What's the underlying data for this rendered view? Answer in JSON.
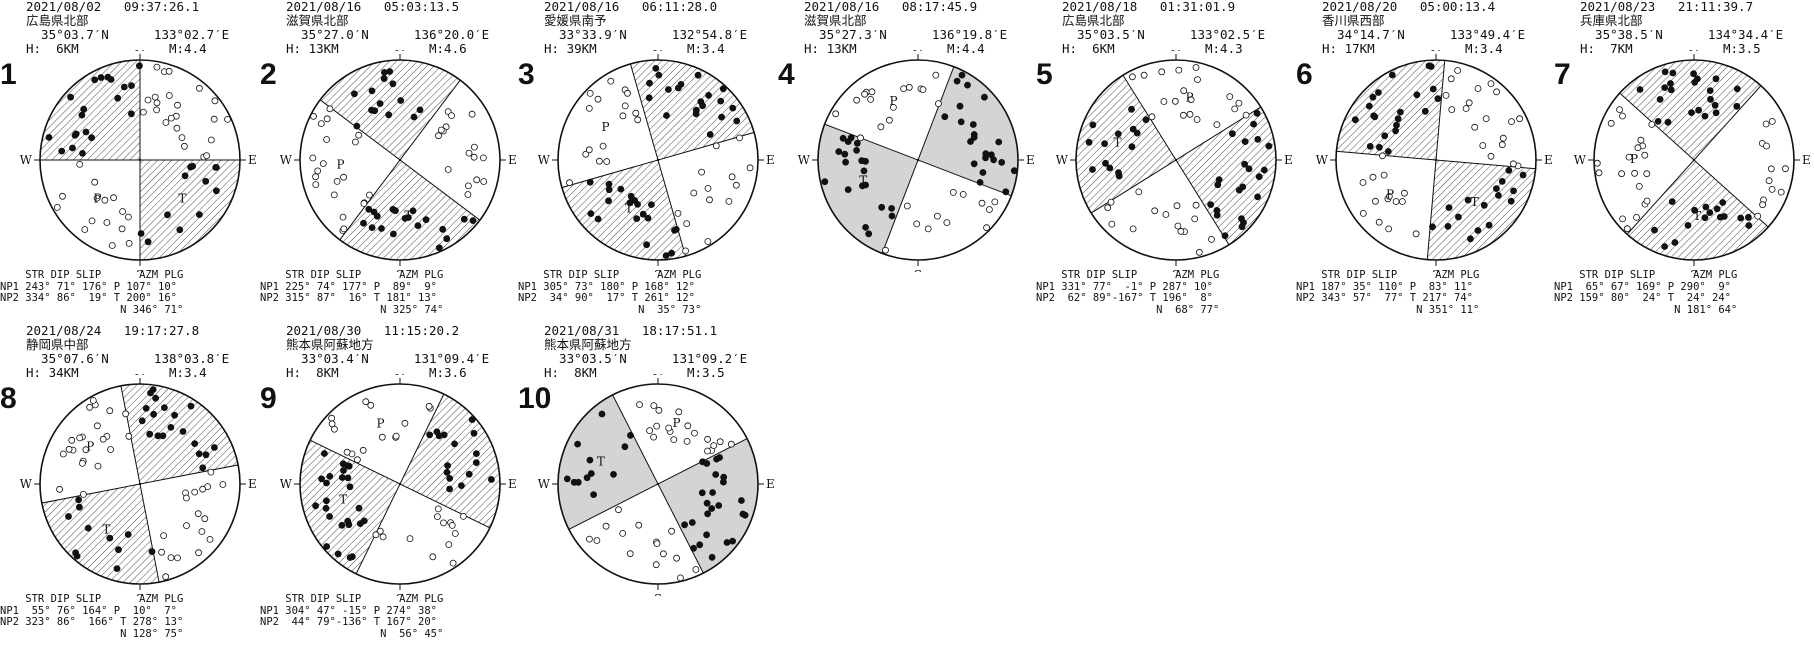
{
  "events": [
    {
      "number": "1",
      "datetime": "2021/08/02   09:37:26.1",
      "region": "広島県北部",
      "lat": "35°03.7′N",
      "lon": "133°02.7′E",
      "depth": "H:  6KM",
      "mag": "M:4.4",
      "params_header": "    STR DIP SLIP      AZM PLG",
      "np1": "NP1 243° 71° 176° P 107° 10°",
      "np2": "NP2 334° 86°  19° T 200° 16°",
      "naxis": "                   N 346° 71°",
      "style": "hatch"
    },
    {
      "number": "2",
      "datetime": "2021/08/16   05:03:13.5",
      "region": "滋賀県北部",
      "lat": "35°27.0′N",
      "lon": "136°20.0′E",
      "depth": "H: 13KM",
      "mag": "M:4.6",
      "params_header": "    STR DIP SLIP      AZM PLG",
      "np1": "NP1 225° 74° 177° P  89°  9°",
      "np2": "NP2 315° 87°  16° T 181° 13°",
      "naxis": "                   N 325° 74°",
      "style": "hatch"
    },
    {
      "number": "3",
      "datetime": "2021/08/16   06:11:28.0",
      "region": "愛媛県南予",
      "lat": "33°33.9′N",
      "lon": "132°54.8′E",
      "depth": "H: 39KM",
      "mag": "M:3.4",
      "params_header": "    STR DIP SLIP      AZM PLG",
      "np1": "NP1 305° 73° 180° P 168° 12°",
      "np2": "NP2  34° 90°  17° T 261° 12°",
      "naxis": "                   N  35° 73°",
      "style": "hatch"
    },
    {
      "number": "4",
      "datetime": "2021/08/16   08:17:45.9",
      "region": "滋賀県北部",
      "lat": "35°27.3′N",
      "lon": "136°19.8′E",
      "depth": "H: 13KM",
      "mag": "M:4.4",
      "params_header": "",
      "np1": "",
      "np2": "",
      "naxis": "",
      "style": "gray"
    },
    {
      "number": "5",
      "datetime": "2021/08/18   01:31:01.9",
      "region": "広島県北部",
      "lat": "35°03.5′N",
      "lon": "133°02.5′E",
      "depth": "H:  6KM",
      "mag": "M:4.3",
      "params_header": "    STR DIP SLIP      AZM PLG",
      "np1": "NP1 331° 77°  -1° P 287° 10°",
      "np2": "NP2  62° 89°-167° T 196°  8°",
      "naxis": "                   N  68° 77°",
      "style": "hatch"
    },
    {
      "number": "6",
      "datetime": "2021/08/20   05:00:13.4",
      "region": "香川県西部",
      "lat": "34°14.7′N",
      "lon": "133°49.4′E",
      "depth": "H: 17KM",
      "mag": "M:3.4",
      "params_header": "    STR DIP SLIP      AZM PLG",
      "np1": "NP1 187° 35° 110° P  83° 11°",
      "np2": "NP2 343° 57°  77° T 217° 74°",
      "naxis": "                   N 351° 11°",
      "style": "hatch"
    },
    {
      "number": "7",
      "datetime": "2021/08/23   21:11:39.7",
      "region": "兵庫県北部",
      "lat": "35°38.5′N",
      "lon": "134°34.4′E",
      "depth": "H:  7KM",
      "mag": "M:3.5",
      "params_header": "    STR DIP SLIP      AZM PLG",
      "np1": "NP1  65° 67° 169° P 290°  9°",
      "np2": "NP2 159° 80°  24° T  24° 24°",
      "naxis": "                   N 181° 64°",
      "style": "hatch"
    },
    {
      "number": "8",
      "datetime": "2021/08/24   19:17:27.8",
      "region": "静岡県中部",
      "lat": "35°07.6′N",
      "lon": "138°03.8′E",
      "depth": "H: 34KM",
      "mag": "M:3.4",
      "params_header": "    STR DIP SLIP      AZM PLG",
      "np1": "NP1  55° 76° 164° P  10°  7°",
      "np2": "NP2 323° 86°  166° T 278° 13°",
      "naxis": "                   N 128° 75°",
      "style": "hatch"
    },
    {
      "number": "9",
      "datetime": "2021/08/30   11:15:20.2",
      "region": "熊本県阿蘇地方",
      "lat": "33°03.4′N",
      "lon": "131°09.4′E",
      "depth": "H:  8KM",
      "mag": "M:3.6",
      "params_header": "    STR DIP SLIP      AZM PLG",
      "np1": "NP1 304° 47° -15° P 274° 38°",
      "np2": "NP2  44° 79°-136° T 167° 20°",
      "naxis": "                   N  56° 45°",
      "style": "hatch"
    },
    {
      "number": "10",
      "datetime": "2021/08/31   18:17:51.1",
      "region": "熊本県阿蘇地方",
      "lat": "33°03.5′N",
      "lon": "131°09.2′E",
      "depth": "H:  8KM",
      "mag": "M:3.5",
      "params_header": "",
      "np1": "",
      "np2": "",
      "naxis": "",
      "style": "gray"
    }
  ],
  "compass": {
    "n": "N",
    "s": "S",
    "e": "E",
    "w": "W",
    "p": "P",
    "t": "T"
  },
  "colors": {
    "ink": "#111111",
    "gray_fill": "#d4d4d4",
    "hatch": "#222222"
  }
}
